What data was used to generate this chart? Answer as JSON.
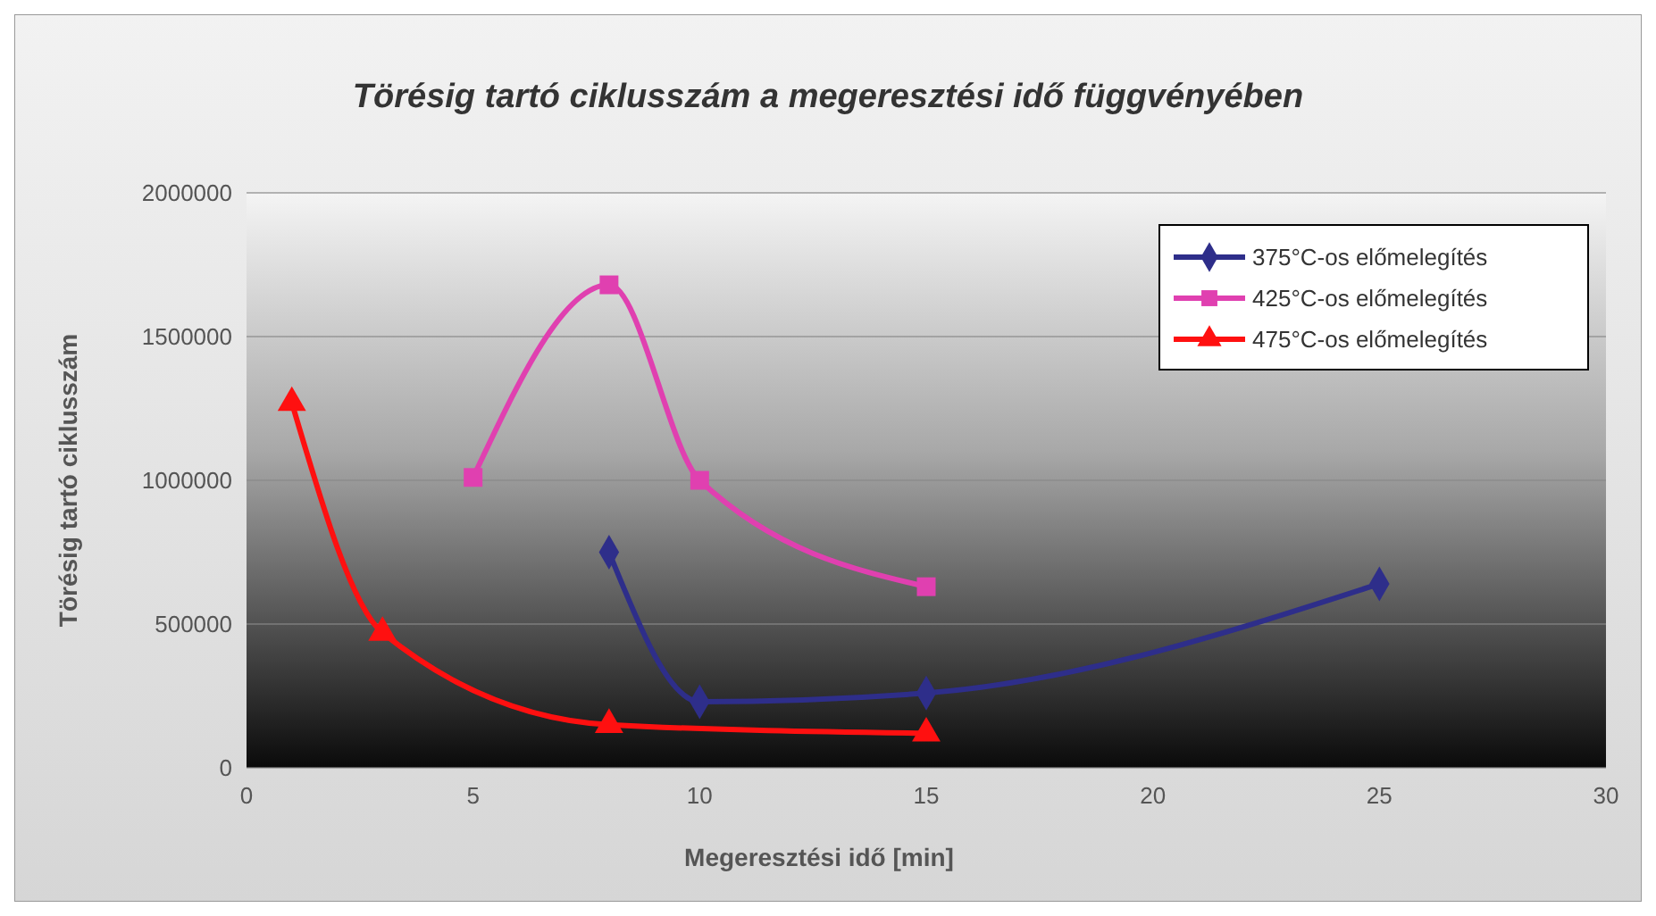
{
  "chart_data": {
    "type": "line",
    "title": "Törésig tartó ciklusszám a megeresztési idő függvényében",
    "xlabel": "Megeresztési idő [min]",
    "ylabel": "Törésig tartó ciklusszám",
    "xlim": [
      0,
      30
    ],
    "xticks": [
      0,
      5,
      10,
      15,
      20,
      25,
      30
    ],
    "ylim": [
      0,
      2000000
    ],
    "yticks": [
      0,
      500000,
      1000000,
      1500000,
      2000000
    ],
    "grid": "y",
    "legend": "top right",
    "series": [
      {
        "name": "375°C-os előmelegítés",
        "color": "#2e2e8a",
        "marker": "diamond",
        "x": [
          8,
          10,
          15,
          25
        ],
        "values": [
          750000,
          230000,
          260000,
          640000
        ]
      },
      {
        "name": "425°C-os előmelegítés",
        "color": "#e040b0",
        "marker": "square",
        "x": [
          5,
          8,
          10,
          15
        ],
        "values": [
          1010000,
          1680000,
          1000000,
          630000
        ]
      },
      {
        "name": "475°C-os előmelegítés",
        "color": "#ff1010",
        "marker": "triangle",
        "x": [
          1,
          3,
          8,
          15
        ],
        "values": [
          1270000,
          470000,
          150000,
          120000
        ]
      }
    ]
  }
}
